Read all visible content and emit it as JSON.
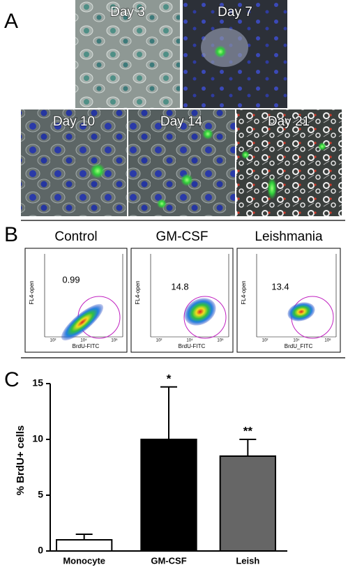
{
  "panel_labels": [
    "A",
    "B",
    "C"
  ],
  "panel_a": {
    "images": [
      {
        "label": "Day 3"
      },
      {
        "label": "Day 7"
      },
      {
        "label": "Day 10"
      },
      {
        "label": "Day 14"
      },
      {
        "label": "Day 21"
      }
    ]
  },
  "panel_b": {
    "x_ticks": [
      "10²",
      "10⁴",
      "10⁶"
    ],
    "plots": [
      {
        "title": "Control",
        "value": 0.99,
        "x_label": "BrdU-FITC",
        "y_label": "FL4-open"
      },
      {
        "title": "GM-CSF",
        "value": 14.8,
        "x_label": "BrdU-FITC",
        "y_label": "FL4-open"
      },
      {
        "title": "Leishmania",
        "value": 13.4,
        "x_label": "BrdU_FITC",
        "y_label": "FL4-open"
      }
    ]
  },
  "chart_data": {
    "type": "bar",
    "y_label": "% BrdU+ cells",
    "categories": [
      "Monocyte",
      "GM-CSF",
      "Leish"
    ],
    "values": [
      1.0,
      10.0,
      8.5
    ],
    "errors": [
      0.5,
      4.7,
      1.5
    ],
    "colors": [
      "#ffffff",
      "#000000",
      "#666666"
    ],
    "annotations": [
      {
        "category": "GM-CSF",
        "text": "*"
      },
      {
        "category": "Leish",
        "text": "**"
      }
    ],
    "ylim": [
      0,
      15
    ],
    "yticks": [
      0,
      5,
      10,
      15
    ]
  }
}
